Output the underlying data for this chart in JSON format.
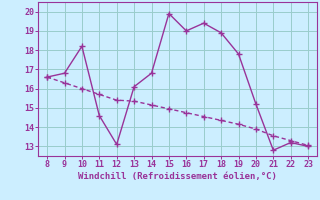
{
  "x": [
    8,
    9,
    10,
    11,
    12,
    13,
    14,
    15,
    16,
    17,
    18,
    19,
    20,
    21,
    22,
    23
  ],
  "y_main": [
    16.6,
    16.8,
    18.2,
    14.6,
    13.1,
    16.1,
    16.8,
    19.9,
    19.0,
    19.4,
    18.9,
    17.8,
    15.2,
    12.8,
    13.2,
    13.0
  ],
  "y_trend": [
    16.6,
    16.3,
    16.0,
    15.7,
    15.4,
    15.35,
    15.15,
    14.95,
    14.75,
    14.55,
    14.35,
    14.15,
    13.9,
    13.55,
    13.3,
    13.05
  ],
  "line_color": "#993399",
  "bg_color": "#cceeff",
  "grid_color": "#99cccc",
  "xlabel": "Windchill (Refroidissement éolien,°C)",
  "xlim": [
    7.5,
    23.5
  ],
  "ylim": [
    12.5,
    20.5
  ],
  "xticks": [
    8,
    9,
    10,
    11,
    12,
    13,
    14,
    15,
    16,
    17,
    18,
    19,
    20,
    21,
    22,
    23
  ],
  "yticks": [
    13,
    14,
    15,
    16,
    17,
    18,
    19,
    20
  ],
  "marker": "+",
  "markersize": 4,
  "linewidth": 1.0,
  "label_fontsize": 6.5,
  "tick_fontsize": 6.0
}
